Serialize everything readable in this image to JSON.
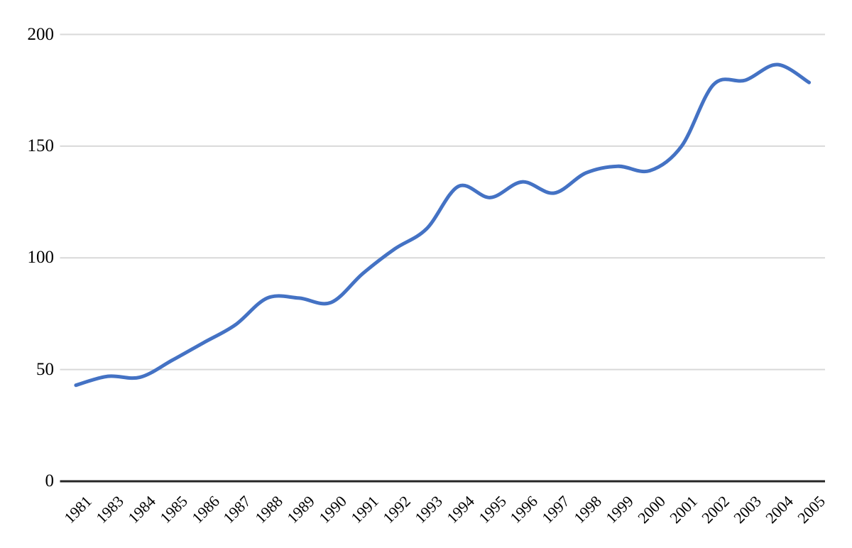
{
  "chart_data": {
    "type": "line",
    "smooth": true,
    "title": "",
    "xlabel": "",
    "ylabel": "",
    "legend": "none",
    "grid": true,
    "categories": [
      "1981",
      "1983",
      "1984",
      "1985",
      "1986",
      "1987",
      "1988",
      "1989",
      "1990",
      "1991",
      "1992",
      "1993",
      "1994",
      "1995",
      "1996",
      "1997",
      "1998",
      "1999",
      "2000",
      "2001",
      "2002",
      "2003",
      "2004",
      "2005"
    ],
    "values": [
      43,
      47,
      46.5,
      54,
      62,
      70,
      82,
      82,
      80,
      93,
      104,
      113,
      132,
      127,
      134,
      129,
      138,
      141,
      139,
      150,
      177.5,
      179.5,
      186.5,
      178.5
    ],
    "ylim": [
      0,
      200
    ],
    "yticks": [
      0,
      50,
      100,
      150,
      200
    ],
    "colors": {
      "line": "#4472C4",
      "gridline": "#D9D9D9",
      "axis": "#262626",
      "label": "#000000",
      "background": "#FFFFFF"
    }
  }
}
